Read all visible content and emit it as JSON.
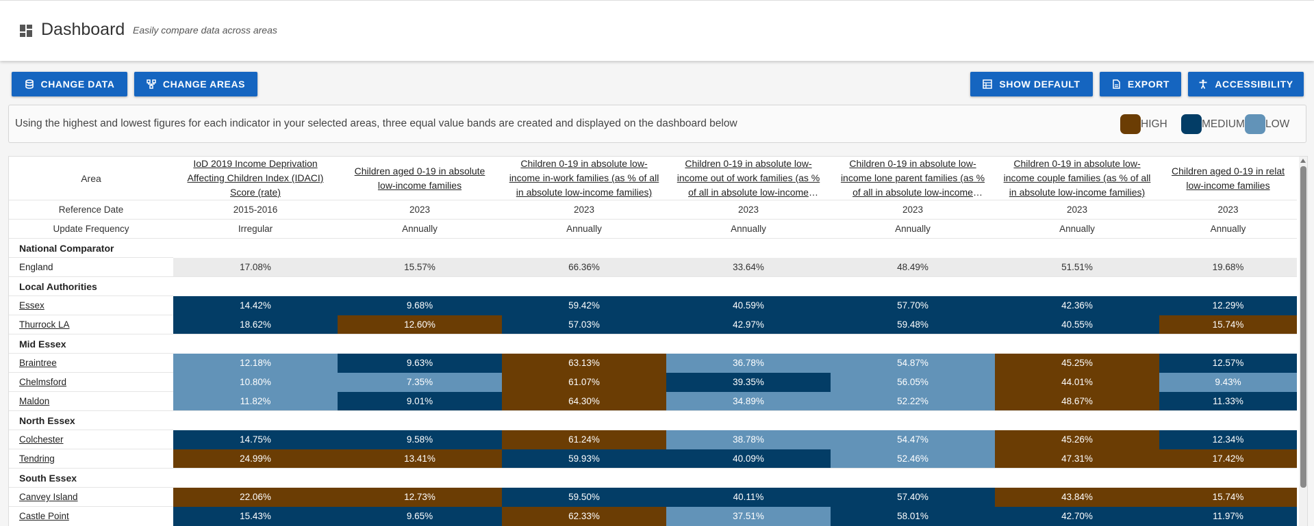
{
  "header": {
    "title": "Dashboard",
    "subtitle": "Easily compare data across areas",
    "icon": "dashboard-icon"
  },
  "toolbar": {
    "change_data": "CHANGE DATA",
    "change_areas": "CHANGE AREAS",
    "show_default": "SHOW DEFAULT",
    "export": "EXPORT",
    "accessibility": "ACCESSIBILITY"
  },
  "info": {
    "text": "Using the highest and lowest figures for each indicator in your selected areas, three equal value bands are created and displayed on the dashboard below",
    "legend": [
      {
        "label": "HIGH",
        "color": "#6b3d04"
      },
      {
        "label": "MEDIUM",
        "color": "#033d66"
      },
      {
        "label": "LOW",
        "color": "#6293b8"
      }
    ]
  },
  "colors": {
    "H": "#6b3d04",
    "M": "#033d66",
    "L": "#6293b8",
    "accent": "#1565c0"
  },
  "table": {
    "area_header": "Area",
    "indicators": [
      "IoD 2019 Income Deprivation Affecting Children Index (IDACI) Score (rate)",
      "Children aged 0-19 in absolute low-income families",
      "Children 0-19 in absolute low-income in-work families (as % of all in absolute low-income families)",
      "Children 0-19 in absolute low-income out of work families (as % of all in absolute low-income families)",
      "Children 0-19 in absolute low-income lone parent families (as % of all in absolute low-income families)",
      "Children 0-19 in absolute low-income couple families (as % of all in absolute low-income families)",
      "Children aged 0-19 in relat low-income families"
    ],
    "reference_label": "Reference Date",
    "reference_dates": [
      "2015-2016",
      "2023",
      "2023",
      "2023",
      "2023",
      "2023",
      "2023"
    ],
    "frequency_label": "Update Frequency",
    "frequencies": [
      "Irregular",
      "Annually",
      "Annually",
      "Annually",
      "Annually",
      "Annually",
      "Annually"
    ],
    "groups": [
      {
        "name": "National Comparator",
        "national": true,
        "rows": [
          {
            "area": "England",
            "values": [
              "17.08%",
              "15.57%",
              "66.36%",
              "33.64%",
              "48.49%",
              "51.51%",
              "19.68%"
            ],
            "bands": [
              "",
              "",
              "",
              "",
              "",
              "",
              ""
            ]
          }
        ]
      },
      {
        "name": "Local Authorities",
        "rows": [
          {
            "area": "Essex",
            "values": [
              "14.42%",
              "9.68%",
              "59.42%",
              "40.59%",
              "57.70%",
              "42.36%",
              "12.29%"
            ],
            "bands": [
              "M",
              "M",
              "M",
              "M",
              "M",
              "M",
              "M"
            ]
          },
          {
            "area": "Thurrock LA",
            "values": [
              "18.62%",
              "12.60%",
              "57.03%",
              "42.97%",
              "59.48%",
              "40.55%",
              "15.74%"
            ],
            "bands": [
              "M",
              "H",
              "M",
              "M",
              "M",
              "M",
              "H"
            ]
          }
        ]
      },
      {
        "name": "Mid Essex",
        "rows": [
          {
            "area": "Braintree",
            "values": [
              "12.18%",
              "9.63%",
              "63.13%",
              "36.78%",
              "54.87%",
              "45.25%",
              "12.57%"
            ],
            "bands": [
              "L",
              "M",
              "H",
              "L",
              "L",
              "H",
              "M"
            ]
          },
          {
            "area": "Chelmsford",
            "values": [
              "10.80%",
              "7.35%",
              "61.07%",
              "39.35%",
              "56.05%",
              "44.01%",
              "9.43%"
            ],
            "bands": [
              "L",
              "L",
              "H",
              "M",
              "L",
              "H",
              "L"
            ]
          },
          {
            "area": "Maldon",
            "values": [
              "11.82%",
              "9.01%",
              "64.30%",
              "34.89%",
              "52.22%",
              "48.67%",
              "11.33%"
            ],
            "bands": [
              "L",
              "M",
              "H",
              "L",
              "L",
              "H",
              "M"
            ]
          }
        ]
      },
      {
        "name": "North Essex",
        "rows": [
          {
            "area": "Colchester",
            "values": [
              "14.75%",
              "9.58%",
              "61.24%",
              "38.78%",
              "54.47%",
              "45.26%",
              "12.34%"
            ],
            "bands": [
              "M",
              "M",
              "H",
              "L",
              "L",
              "H",
              "M"
            ]
          },
          {
            "area": "Tendring",
            "values": [
              "24.99%",
              "13.41%",
              "59.93%",
              "40.09%",
              "52.46%",
              "47.31%",
              "17.42%"
            ],
            "bands": [
              "H",
              "H",
              "M",
              "M",
              "L",
              "H",
              "H"
            ]
          }
        ]
      },
      {
        "name": "South Essex",
        "rows": [
          {
            "area": "Canvey Island",
            "values": [
              "22.06%",
              "12.73%",
              "59.50%",
              "40.11%",
              "57.40%",
              "43.84%",
              "15.74%"
            ],
            "bands": [
              "H",
              "H",
              "M",
              "M",
              "M",
              "H",
              "H"
            ]
          },
          {
            "area": "Castle Point",
            "values": [
              "15.43%",
              "9.65%",
              "62.33%",
              "37.51%",
              "58.01%",
              "42.70%",
              "11.97%"
            ],
            "bands": [
              "M",
              "M",
              "H",
              "L",
              "M",
              "M",
              "M"
            ]
          }
        ]
      }
    ]
  }
}
